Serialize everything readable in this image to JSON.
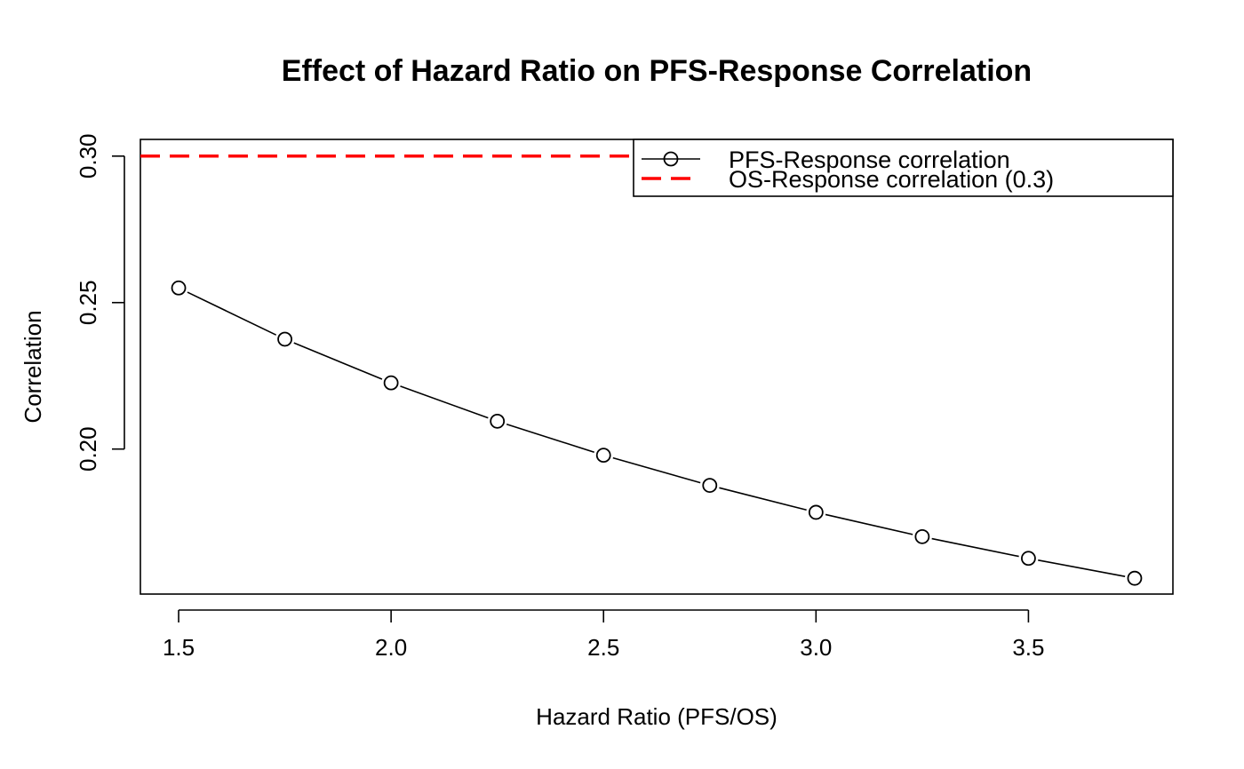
{
  "chart_data": {
    "type": "line",
    "title": "Effect of Hazard Ratio on PFS-Response Correlation",
    "xlabel": "Hazard Ratio (PFS/OS)",
    "ylabel": "Correlation",
    "xlim": [
      1.41,
      3.84
    ],
    "ylim": [
      0.1505,
      0.3057
    ],
    "x_ticks": [
      1.5,
      2.0,
      2.5,
      3.0,
      3.5
    ],
    "x_tick_labels": [
      "1.5",
      "2.0",
      "2.5",
      "3.0",
      "3.5"
    ],
    "y_ticks": [
      0.2,
      0.25,
      0.3
    ],
    "y_tick_labels": [
      "0.20",
      "0.25",
      "0.30"
    ],
    "grid": false,
    "legend_position": "top-right",
    "series": [
      {
        "name": "PFS-Response correlation",
        "style": "line-with-open-circles",
        "color": "#000000",
        "x": [
          1.5,
          1.75,
          2.0,
          2.25,
          2.5,
          2.75,
          3.0,
          3.25,
          3.5,
          3.75
        ],
        "y": [
          0.255,
          0.2375,
          0.2226,
          0.2095,
          0.1979,
          0.1876,
          0.1784,
          0.1701,
          0.1627,
          0.1559
        ]
      }
    ],
    "reference_lines": [
      {
        "name": "OS-Response correlation (0.3)",
        "orientation": "horizontal",
        "y": 0.3,
        "style": "dashed",
        "color": "#ff0000"
      }
    ]
  }
}
